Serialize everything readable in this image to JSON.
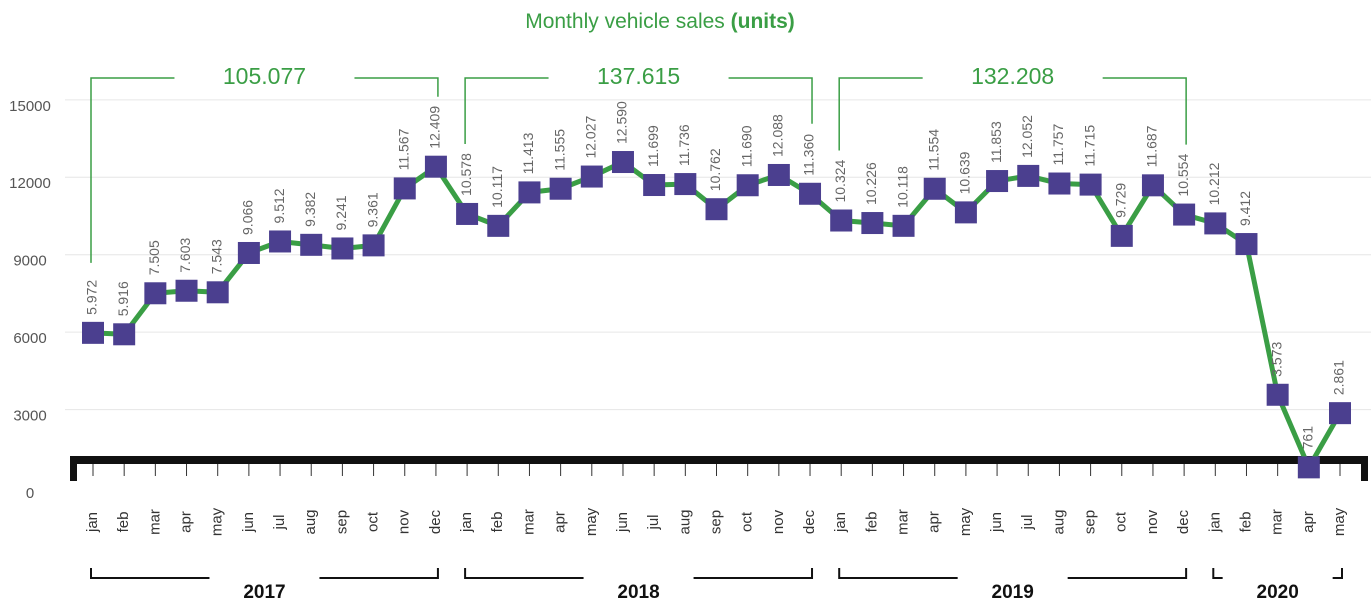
{
  "chart_data": {
    "type": "line",
    "title": "Monthly vehicle sales",
    "title_unit": "(units)",
    "categories": [
      "jan",
      "feb",
      "mar",
      "apr",
      "may",
      "jun",
      "jul",
      "aug",
      "sep",
      "oct",
      "nov",
      "dec",
      "jan",
      "feb",
      "mar",
      "apr",
      "may",
      "jun",
      "jul",
      "aug",
      "sep",
      "oct",
      "nov",
      "dec",
      "jan",
      "feb",
      "mar",
      "apr",
      "may",
      "jun",
      "jul",
      "aug",
      "sep",
      "oct",
      "nov",
      "dec",
      "jan",
      "feb",
      "mar",
      "apr",
      "may"
    ],
    "groups": [
      {
        "label": "2017",
        "total": "105.077"
      },
      {
        "label": "2018",
        "total": "137.615"
      },
      {
        "label": "2019",
        "total": "132.208"
      },
      {
        "label": "2020"
      }
    ],
    "series": [
      {
        "color": "#3a9e45",
        "marker_color": "#4b3f8f",
        "values": [
          5972,
          5916,
          7505,
          7603,
          7543,
          9066,
          9512,
          9382,
          9241,
          9361,
          11567,
          12409,
          10578,
          10117,
          11413,
          11555,
          12027,
          12590,
          11699,
          11736,
          10762,
          11690,
          12088,
          11360,
          10324,
          10226,
          10118,
          11554,
          10639,
          11853,
          12052,
          11757,
          11715,
          9729,
          11687,
          10554,
          10212,
          9412,
          3573,
          761,
          2861
        ],
        "value_labels": [
          "5.972",
          "5.916",
          "7.505",
          "7.603",
          "7.543",
          "9.066",
          "9.512",
          "9.382",
          "9.241",
          "9.361",
          "11.567",
          "12.409",
          "10.578",
          "10.117",
          "11.413",
          "11.555",
          "12.027",
          "12.590",
          "11.699",
          "11.736",
          "10.762",
          "11.690",
          "12.088",
          "11.360",
          "10.324",
          "10.226",
          "10.118",
          "11.554",
          "10.639",
          "11.853",
          "12.052",
          "11.757",
          "11.715",
          "9.729",
          "11.687",
          "10.554",
          "10.212",
          "9.412",
          "3.573",
          "761",
          "2.861"
        ]
      }
    ],
    "ylim": [
      0,
      16000
    ],
    "yticks": [
      0,
      3000,
      6000,
      9000,
      12000,
      15000
    ],
    "grid": true
  }
}
